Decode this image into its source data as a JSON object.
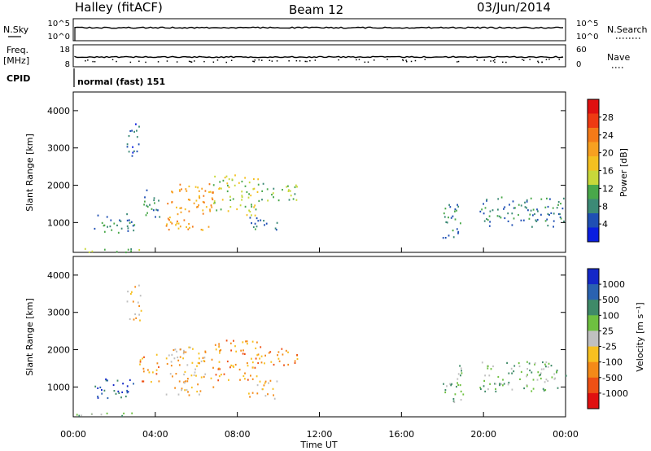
{
  "header": {
    "station": "Halley (fitACF)",
    "beam": "Beam 12",
    "date": "03/Jun/2014"
  },
  "panel_sky": {
    "left_label": "N.Sky",
    "right_label": "N.Search",
    "left_ticks": [
      "10^5",
      "10^0"
    ],
    "right_ticks": [
      "10^5",
      "10^0"
    ]
  },
  "panel_freq": {
    "left_label_1": "Freq.",
    "left_label_2": "[MHz]",
    "right_label": "Nave",
    "left_ticks": [
      "18",
      "8"
    ],
    "right_ticks": [
      "60",
      "0"
    ]
  },
  "panel_cpid": {
    "label": "CPID",
    "value": "normal (fast) 151"
  },
  "chart_data": [
    {
      "type": "heatmap",
      "name": "power",
      "ylabel": "Slant Range [km]",
      "ylim": [
        200,
        4500
      ],
      "yticks": [
        "1000",
        "2000",
        "3000",
        "4000"
      ],
      "colorbar_label": "Power [dB]",
      "colorbar_ticks": [
        "4",
        "8",
        "12",
        "16",
        "20",
        "24",
        "28"
      ],
      "colorbar_colors": [
        "#0a1ee0",
        "#1f4fb4",
        "#3c8a76",
        "#49a84a",
        "#c8d83a",
        "#f4c020",
        "#f7a020",
        "#f47a18",
        "#ee3a12",
        "#e01010"
      ],
      "regions": [
        {
          "t0": 0.0,
          "t1": 3.2,
          "r0": 200,
          "r1": 330,
          "level": 3
        },
        {
          "t0": 1.0,
          "t1": 3.0,
          "r0": 700,
          "r1": 1250,
          "level": 2
        },
        {
          "t0": 2.6,
          "t1": 3.3,
          "r0": 2800,
          "r1": 3800,
          "level": 1
        },
        {
          "t0": 3.2,
          "t1": 4.2,
          "r0": 1150,
          "r1": 1900,
          "level": 2
        },
        {
          "t0": 4.5,
          "t1": 6.8,
          "r0": 800,
          "r1": 2100,
          "level": 6
        },
        {
          "t0": 6.8,
          "t1": 9.0,
          "r0": 1200,
          "r1": 2300,
          "level": 4
        },
        {
          "t0": 9.0,
          "t1": 11.0,
          "r0": 1600,
          "r1": 2100,
          "level": 3
        },
        {
          "t0": 8.5,
          "t1": 10.0,
          "r0": 800,
          "r1": 1200,
          "level": 2
        },
        {
          "t0": 18.0,
          "t1": 19.0,
          "r0": 600,
          "r1": 1600,
          "level": 2
        },
        {
          "t0": 19.8,
          "t1": 24.0,
          "r0": 900,
          "r1": 1700,
          "level": 2
        }
      ]
    },
    {
      "type": "heatmap",
      "name": "velocity",
      "ylabel": "Slant Range [km]",
      "ylim": [
        200,
        4500
      ],
      "yticks": [
        "1000",
        "2000",
        "3000",
        "4000"
      ],
      "xlabel": "Time UT",
      "xticks": [
        "00:00",
        "04:00",
        "08:00",
        "12:00",
        "16:00",
        "20:00",
        "00:00"
      ],
      "xlim": [
        0,
        24
      ],
      "colorbar_label": "Velocity [m s⁻¹]",
      "colorbar_ticks": [
        "1000",
        "500",
        "100",
        "25",
        "-25",
        "-100",
        "-500",
        "-1000"
      ],
      "colorbar_colors": [
        "#1428c8",
        "#2a62b0",
        "#3f8a68",
        "#6ec040",
        "#c0c0c0",
        "#f7c020",
        "#f48a18",
        "#ee5014",
        "#e01010"
      ],
      "regions": [
        {
          "t0": 0.0,
          "t1": 3.0,
          "r0": 200,
          "r1": 330,
          "level": 3
        },
        {
          "t0": 1.0,
          "t1": 3.0,
          "r0": 700,
          "r1": 1250,
          "level": 1
        },
        {
          "t0": 2.6,
          "t1": 3.3,
          "r0": 2800,
          "r1": 3800,
          "level": 5
        },
        {
          "t0": 3.2,
          "t1": 4.2,
          "r0": 1150,
          "r1": 1900,
          "level": 6
        },
        {
          "t0": 4.5,
          "t1": 6.8,
          "r0": 800,
          "r1": 2100,
          "level": 5
        },
        {
          "t0": 6.8,
          "t1": 9.0,
          "r0": 1200,
          "r1": 2300,
          "level": 6
        },
        {
          "t0": 9.0,
          "t1": 11.0,
          "r0": 1600,
          "r1": 2100,
          "level": 6
        },
        {
          "t0": 8.5,
          "t1": 10.0,
          "r0": 700,
          "r1": 1200,
          "level": 5
        },
        {
          "t0": 18.0,
          "t1": 19.0,
          "r0": 600,
          "r1": 1600,
          "level": 3
        },
        {
          "t0": 19.8,
          "t1": 24.0,
          "r0": 900,
          "r1": 1700,
          "level": 3
        }
      ]
    }
  ]
}
